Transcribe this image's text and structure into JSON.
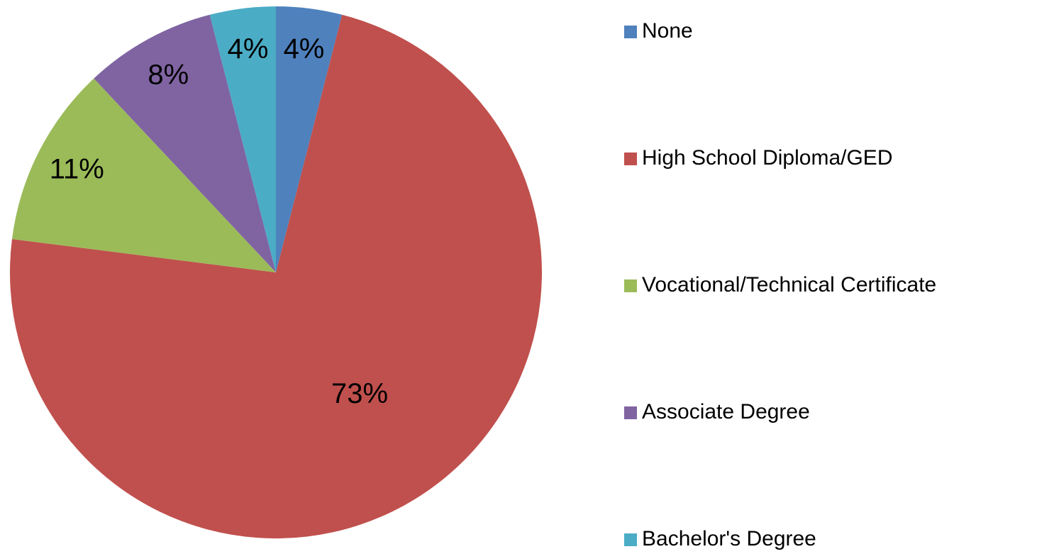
{
  "chart_data": {
    "type": "pie",
    "categories": [
      "None",
      "High School Diploma/GED",
      "Vocational/Technical Certificate",
      "Associate Degree",
      "Bachelor's Degree"
    ],
    "values": [
      4,
      73,
      11,
      8,
      4
    ],
    "value_labels": [
      "4%",
      "73%",
      "11%",
      "8%",
      "4%"
    ],
    "colors": [
      "#4f81bd",
      "#c0504d",
      "#9bbb59",
      "#8064a2",
      "#4bacc6"
    ],
    "legend": "right"
  }
}
